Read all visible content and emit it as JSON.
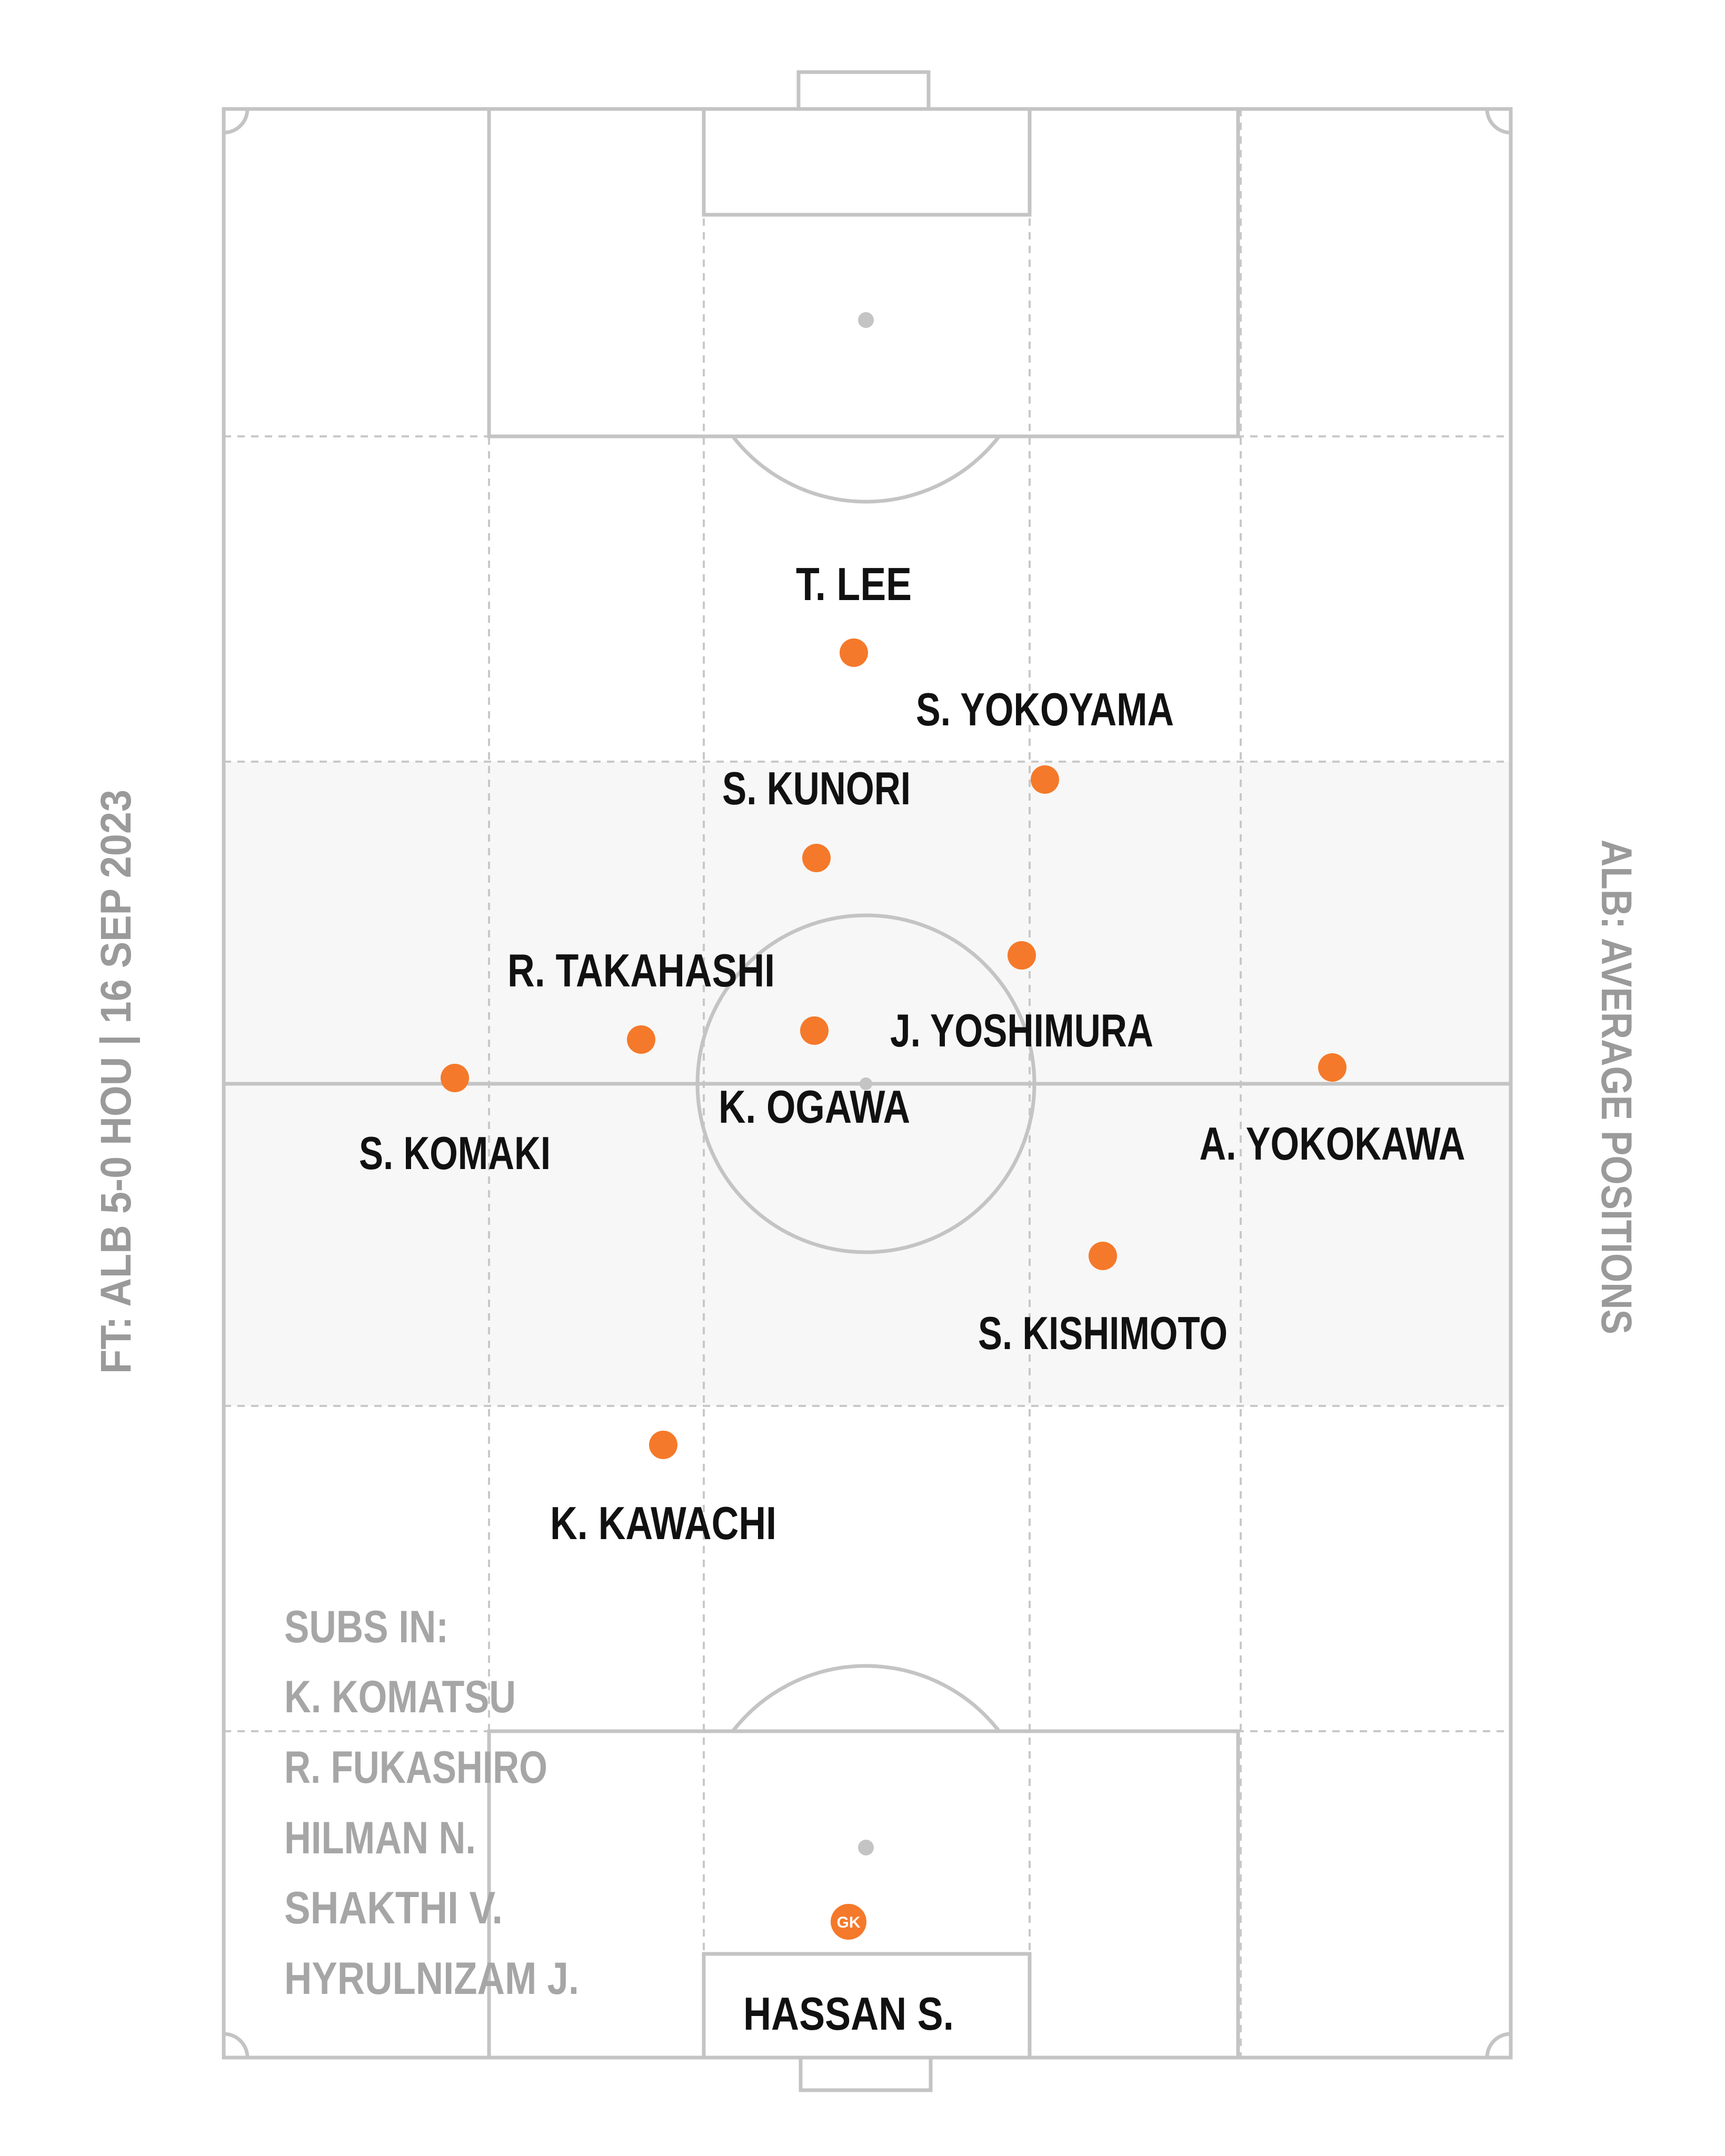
{
  "left_caption": "FT: ALB 5-0 HOU | 16 SEP 2023",
  "right_caption": "ALB: AVERAGE POSITIONS",
  "subs": {
    "heading": "SUBS IN:",
    "players": [
      "K. KOMATSU",
      "R. FUKASHIRO",
      "HILMAN N.",
      "SHAKTHI V.",
      "HYRULNIZAM J."
    ]
  },
  "players": {
    "t_lee": "T. LEE",
    "s_yokoyama": "S. YOKOYAMA",
    "s_kunori": "S. KUNORI",
    "r_takahashi": "R. TAKAHASHI",
    "j_yoshimura": "J. YOSHIMURA",
    "k_ogawa": "K. OGAWA",
    "s_komaki": "S. KOMAKI",
    "a_yokokawa": "A. YOKOKAWA",
    "s_kishimoto": "S. KISHIMOTO",
    "k_kawachi": "K. KAWACHI",
    "hassan_s": "HASSAN S."
  },
  "gk_badge": "GK",
  "colors": {
    "marker": "#f5792a",
    "pitch_line": "#c4c4c4",
    "middle_band": "#f7f7f7",
    "caption": "#9a9a9a",
    "label": "#111111"
  }
}
